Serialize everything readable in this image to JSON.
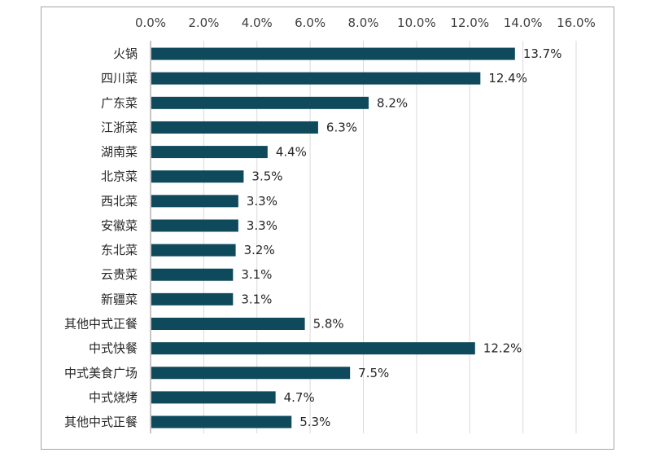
{
  "chart_data": {
    "type": "bar",
    "orientation": "horizontal",
    "x_axis_position": "top",
    "xlim": [
      0,
      16
    ],
    "x_ticks": [
      "0.0%",
      "2.0%",
      "4.0%",
      "6.0%",
      "8.0%",
      "10.0%",
      "12.0%",
      "14.0%",
      "16.0%"
    ],
    "grid": true,
    "legend": "none",
    "bar_color": "#0e4a5c",
    "categories": [
      "火锅",
      "四川菜",
      "广东菜",
      "江浙菜",
      "湖南菜",
      "北京菜",
      "西北菜",
      "安徽菜",
      "东北菜",
      "云贵菜",
      "新疆菜",
      "其他中式正餐",
      "中式快餐",
      "中式美食广场",
      "中式烧烤",
      "其他中式正餐"
    ],
    "values": [
      13.7,
      12.4,
      8.2,
      6.3,
      4.4,
      3.5,
      3.3,
      3.3,
      3.2,
      3.1,
      3.1,
      5.8,
      12.2,
      7.5,
      4.7,
      5.3
    ],
    "value_labels": [
      "13.7%",
      "12.4%",
      "8.2%",
      "6.3%",
      "4.4%",
      "3.5%",
      "3.3%",
      "3.3%",
      "3.2%",
      "3.1%",
      "3.1%",
      "5.8%",
      "12.2%",
      "7.5%",
      "4.7%",
      "5.3%"
    ]
  }
}
